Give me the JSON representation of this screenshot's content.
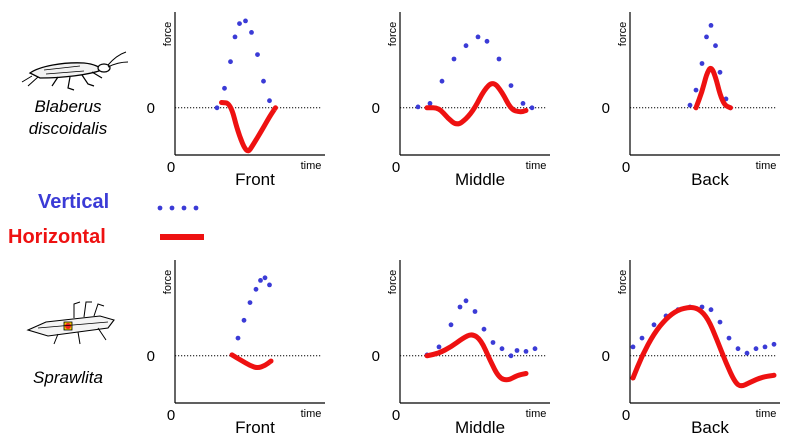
{
  "chart_data": [
    {
      "type": "line",
      "row": "Blaberus discoidalis",
      "xlabel": "Front",
      "ylabel": "force",
      "x_axis_name": "time",
      "x_origin_label": "0",
      "y_zero_label": "0",
      "series": [
        {
          "name": "Vertical",
          "style": "dotted",
          "points": [
            [
              0.28,
              0.0
            ],
            [
              0.33,
              0.22
            ],
            [
              0.37,
              0.52
            ],
            [
              0.4,
              0.8
            ],
            [
              0.43,
              0.95
            ],
            [
              0.47,
              0.98
            ],
            [
              0.51,
              0.85
            ],
            [
              0.55,
              0.6
            ],
            [
              0.59,
              0.3
            ],
            [
              0.63,
              0.08
            ]
          ]
        },
        {
          "name": "Horizontal",
          "style": "solid",
          "points": [
            [
              0.31,
              0.06
            ],
            [
              0.37,
              0.05
            ],
            [
              0.42,
              -0.28
            ],
            [
              0.48,
              -0.52
            ],
            [
              0.52,
              -0.42
            ],
            [
              0.58,
              -0.25
            ],
            [
              0.63,
              -0.1
            ],
            [
              0.67,
              0.0
            ]
          ]
        }
      ]
    },
    {
      "type": "line",
      "row": "Blaberus discoidalis",
      "xlabel": "Middle",
      "ylabel": "force",
      "x_axis_name": "time",
      "x_origin_label": "0",
      "y_zero_label": "0",
      "series": [
        {
          "name": "Vertical",
          "style": "dotted",
          "points": [
            [
              0.12,
              0.01
            ],
            [
              0.2,
              0.05
            ],
            [
              0.28,
              0.3
            ],
            [
              0.36,
              0.55
            ],
            [
              0.44,
              0.7
            ],
            [
              0.52,
              0.8
            ],
            [
              0.58,
              0.75
            ],
            [
              0.66,
              0.55
            ],
            [
              0.74,
              0.25
            ],
            [
              0.82,
              0.05
            ],
            [
              0.88,
              0.0
            ]
          ]
        },
        {
          "name": "Horizontal",
          "style": "solid",
          "points": [
            [
              0.18,
              0.0
            ],
            [
              0.26,
              0.0
            ],
            [
              0.32,
              -0.12
            ],
            [
              0.38,
              -0.2
            ],
            [
              0.44,
              -0.13
            ],
            [
              0.5,
              0.0
            ],
            [
              0.56,
              0.2
            ],
            [
              0.62,
              0.3
            ],
            [
              0.68,
              0.18
            ],
            [
              0.74,
              -0.02
            ],
            [
              0.8,
              -0.05
            ],
            [
              0.84,
              -0.03
            ]
          ]
        }
      ]
    },
    {
      "type": "line",
      "row": "Blaberus discoidalis",
      "xlabel": "Back",
      "ylabel": "force",
      "x_axis_name": "time",
      "x_origin_label": "0",
      "y_zero_label": "0",
      "series": [
        {
          "name": "Vertical",
          "style": "dotted",
          "points": [
            [
              0.4,
              0.03
            ],
            [
              0.44,
              0.2
            ],
            [
              0.48,
              0.5
            ],
            [
              0.51,
              0.8
            ],
            [
              0.54,
              0.93
            ],
            [
              0.57,
              0.7
            ],
            [
              0.6,
              0.4
            ],
            [
              0.64,
              0.1
            ],
            [
              0.67,
              0.0
            ]
          ]
        },
        {
          "name": "Horizontal",
          "style": "solid",
          "points": [
            [
              0.44,
              0.0
            ],
            [
              0.48,
              0.18
            ],
            [
              0.51,
              0.38
            ],
            [
              0.54,
              0.47
            ],
            [
              0.57,
              0.35
            ],
            [
              0.6,
              0.15
            ],
            [
              0.63,
              0.03
            ],
            [
              0.67,
              0.0
            ]
          ]
        }
      ]
    },
    {
      "type": "line",
      "row": "Sprawlita",
      "xlabel": "Front",
      "ylabel": "force",
      "x_axis_name": "time",
      "x_origin_label": "0",
      "y_zero_label": "0",
      "series": [
        {
          "name": "Vertical",
          "style": "dotted",
          "points": [
            [
              0.38,
              0.01
            ],
            [
              0.42,
              0.2
            ],
            [
              0.46,
              0.4
            ],
            [
              0.5,
              0.6
            ],
            [
              0.54,
              0.75
            ],
            [
              0.57,
              0.85
            ],
            [
              0.6,
              0.88
            ],
            [
              0.63,
              0.8
            ]
          ]
        },
        {
          "name": "Horizontal",
          "style": "solid",
          "points": [
            [
              0.38,
              0.01
            ],
            [
              0.44,
              -0.05
            ],
            [
              0.5,
              -0.11
            ],
            [
              0.55,
              -0.14
            ],
            [
              0.6,
              -0.11
            ],
            [
              0.64,
              -0.06
            ]
          ]
        }
      ]
    },
    {
      "type": "line",
      "row": "Sprawlita",
      "xlabel": "Middle",
      "ylabel": "force",
      "x_axis_name": "time",
      "x_origin_label": "0",
      "y_zero_label": "0",
      "series": [
        {
          "name": "Vertical",
          "style": "dotted",
          "points": [
            [
              0.18,
              0.01
            ],
            [
              0.26,
              0.1
            ],
            [
              0.34,
              0.35
            ],
            [
              0.4,
              0.55
            ],
            [
              0.44,
              0.62
            ],
            [
              0.5,
              0.5
            ],
            [
              0.56,
              0.3
            ],
            [
              0.62,
              0.15
            ],
            [
              0.68,
              0.08
            ],
            [
              0.74,
              0.0
            ],
            [
              0.78,
              0.06
            ],
            [
              0.84,
              0.05
            ],
            [
              0.9,
              0.08
            ]
          ]
        },
        {
          "name": "Horizontal",
          "style": "solid",
          "points": [
            [
              0.18,
              0.0
            ],
            [
              0.26,
              0.03
            ],
            [
              0.34,
              0.1
            ],
            [
              0.42,
              0.2
            ],
            [
              0.48,
              0.25
            ],
            [
              0.54,
              0.18
            ],
            [
              0.6,
              -0.05
            ],
            [
              0.66,
              -0.25
            ],
            [
              0.72,
              -0.28
            ],
            [
              0.78,
              -0.22
            ],
            [
              0.84,
              -0.2
            ]
          ]
        }
      ]
    },
    {
      "type": "line",
      "row": "Sprawlita",
      "xlabel": "Back",
      "ylabel": "force",
      "x_axis_name": "time",
      "x_origin_label": "0",
      "y_zero_label": "0",
      "series": [
        {
          "name": "Vertical",
          "style": "dotted",
          "points": [
            [
              0.02,
              0.1
            ],
            [
              0.08,
              0.2
            ],
            [
              0.16,
              0.35
            ],
            [
              0.24,
              0.45
            ],
            [
              0.32,
              0.52
            ],
            [
              0.4,
              0.55
            ],
            [
              0.48,
              0.55
            ],
            [
              0.54,
              0.52
            ],
            [
              0.6,
              0.38
            ],
            [
              0.66,
              0.2
            ],
            [
              0.72,
              0.08
            ],
            [
              0.78,
              0.03
            ],
            [
              0.84,
              0.08
            ],
            [
              0.9,
              0.1
            ],
            [
              0.96,
              0.13
            ]
          ]
        },
        {
          "name": "Horizontal",
          "style": "solid",
          "points": [
            [
              0.02,
              -0.25
            ],
            [
              0.08,
              0.0
            ],
            [
              0.16,
              0.25
            ],
            [
              0.24,
              0.42
            ],
            [
              0.32,
              0.52
            ],
            [
              0.4,
              0.55
            ],
            [
              0.46,
              0.53
            ],
            [
              0.52,
              0.42
            ],
            [
              0.58,
              0.18
            ],
            [
              0.64,
              -0.08
            ],
            [
              0.7,
              -0.3
            ],
            [
              0.74,
              -0.35
            ],
            [
              0.8,
              -0.3
            ],
            [
              0.88,
              -0.24
            ],
            [
              0.96,
              -0.22
            ]
          ]
        }
      ]
    }
  ],
  "rows": [
    {
      "label_lines": [
        "Blaberus",
        "discoidalis"
      ],
      "icon": "cockroach-icon"
    },
    {
      "label_lines": [
        "Sprawlita"
      ],
      "icon": "robot-icon"
    }
  ],
  "legend": {
    "vertical_label": "Vertical",
    "horizontal_label": "Horizontal",
    "vertical_color": "#3b3bd6",
    "horizontal_color": "#ee1111"
  },
  "colors": {
    "vertical": "#3b3bd6",
    "horizontal": "#ee1111",
    "axis": "#000000",
    "zero_line": "#000000"
  }
}
